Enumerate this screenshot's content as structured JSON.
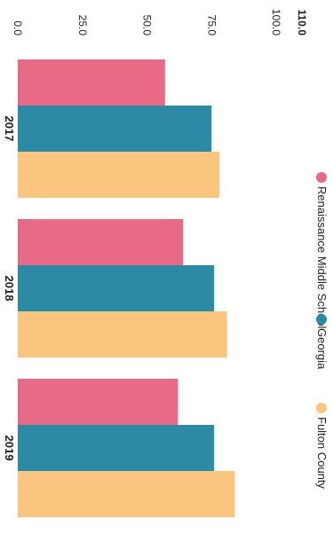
{
  "chart_data": {
    "type": "bar",
    "orientation": "vertical",
    "rendered_rotation": "90deg-clockwise",
    "categories": [
      "2017",
      "2018",
      "2019"
    ],
    "series": [
      {
        "name": "Renaissance Middle School",
        "color": "#e96a86",
        "values": [
          57,
          64,
          62
        ]
      },
      {
        "name": "Georgia",
        "color": "#2d8aa6",
        "values": [
          75,
          76,
          76
        ]
      },
      {
        "name": "Fulton County",
        "color": "#f9c57f",
        "values": [
          78,
          81,
          84
        ]
      }
    ],
    "yticks": [
      "0.0",
      "25.0",
      "50.0",
      "75.0",
      "100.0",
      "110.0"
    ],
    "ylim": [
      0,
      110
    ],
    "grid": false,
    "legend_position": "right"
  }
}
